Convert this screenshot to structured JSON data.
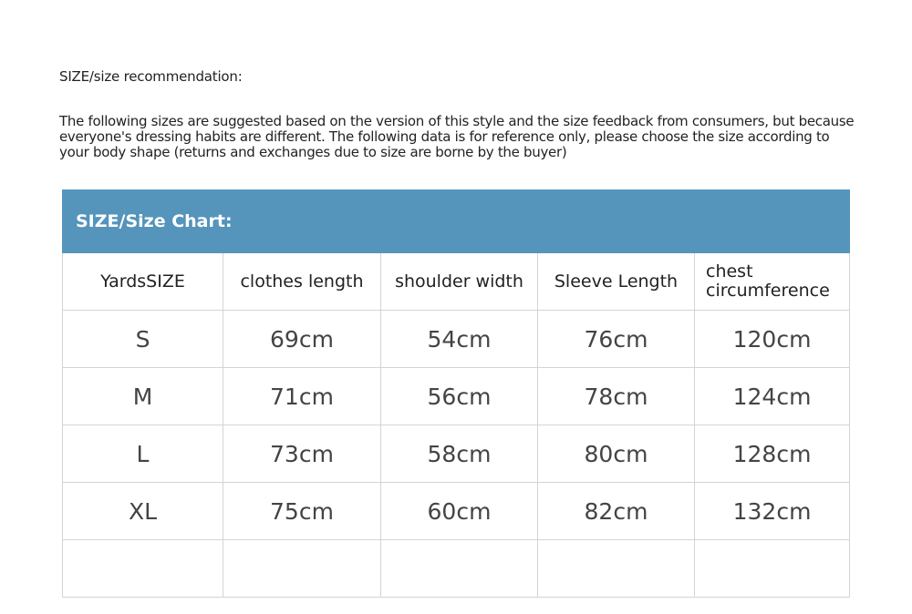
{
  "title": "SIZE/size recommendation:",
  "description": "The following sizes are suggested based on the version of this style and the size feedback from consumers, but because everyone's dressing habits are different. The following data is for reference only, please choose the size according to your body shape (returns and exchanges due to size are borne by the buyer)",
  "table": {
    "band_title": "SIZE/Size Chart:",
    "header_color": "#5594bb",
    "columns": [
      "YardsSIZE",
      "clothes length",
      "shoulder width",
      "Sleeve Length",
      "chest circumference"
    ],
    "rows": [
      [
        "S",
        "69cm",
        "54cm",
        "76cm",
        "120cm"
      ],
      [
        "M",
        "71cm",
        "56cm",
        "78cm",
        "124cm"
      ],
      [
        "L",
        "73cm",
        "58cm",
        "80cm",
        "128cm"
      ],
      [
        "XL",
        "75cm",
        "60cm",
        "82cm",
        "132cm"
      ],
      [
        "",
        "",
        "",
        "",
        ""
      ]
    ]
  }
}
